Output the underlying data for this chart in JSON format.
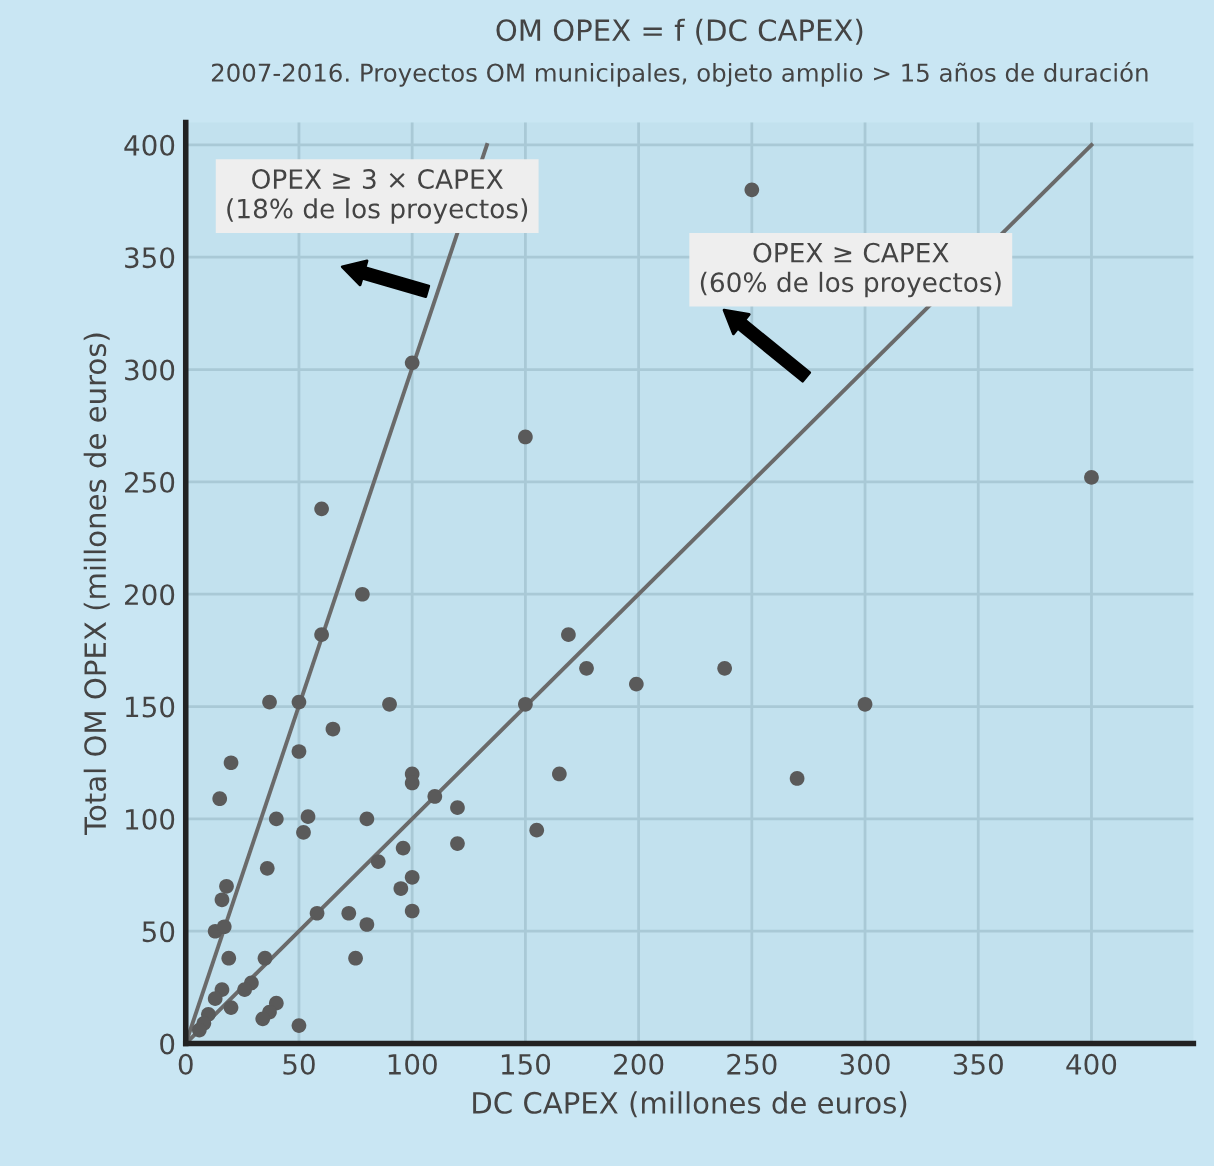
{
  "chart_data": {
    "type": "scatter",
    "title": "OM OPEX = f (DC CAPEX)",
    "subtitle": "2007-2016. Proyectos OM municipales, objeto amplio > 15 años de duración",
    "xlabel": "DC CAPEX (millones de euros)",
    "ylabel": "Total OM OPEX (millones de euros)",
    "annotations": [
      "OPEX ≥ 3 × CAPEX\n(18% de los proyectos)",
      "OPEX ≥ CAPEX\n(60% de los proyectos)"
    ],
    "series": [
      {
        "color": "#5a5a5a",
        "marker": "circle",
        "x": [
          250,
          100,
          150,
          400,
          60,
          78,
          60,
          37,
          50,
          90,
          65,
          50,
          20,
          169,
          177,
          199,
          238,
          150,
          300,
          100,
          100,
          165,
          270,
          110,
          120,
          155,
          96,
          120,
          100,
          95,
          100,
          15,
          40,
          54,
          52,
          80,
          85,
          36,
          18,
          16,
          13,
          17,
          58,
          72,
          80,
          75,
          19,
          35,
          29,
          26,
          16,
          40,
          37,
          34,
          50,
          20,
          13,
          10,
          8,
          6
        ],
        "values": [
          380,
          303,
          270,
          252,
          238,
          200,
          182,
          152,
          152,
          151,
          140,
          130,
          125,
          182,
          167,
          160,
          167,
          151,
          151,
          120,
          116,
          120,
          118,
          110,
          105,
          95,
          87,
          89,
          74,
          69,
          59,
          109,
          100,
          101,
          94,
          100,
          81,
          78,
          70,
          64,
          50,
          52,
          58,
          58,
          53,
          38,
          38,
          38,
          27,
          24,
          24,
          18,
          14,
          11,
          8,
          16,
          20,
          13,
          9,
          6
        ]
      },
      {
        "type": "line",
        "color": "#6a6a6a",
        "marker": "none",
        "x": [
          0,
          133
        ],
        "values": [
          0,
          400
        ]
      },
      {
        "type": "line",
        "color": "#6a6a6a",
        "marker": "none",
        "x": [
          0,
          400
        ],
        "values": [
          0,
          400
        ]
      }
    ],
    "xlim": [
      0,
      445
    ],
    "ylim": [
      0,
      410
    ],
    "xticks": [
      0,
      50,
      100,
      150,
      200,
      250,
      300,
      350,
      400
    ],
    "yticks": [
      0,
      50,
      100,
      150,
      200,
      250,
      300,
      350,
      400
    ],
    "grid": true,
    "legend": false
  }
}
